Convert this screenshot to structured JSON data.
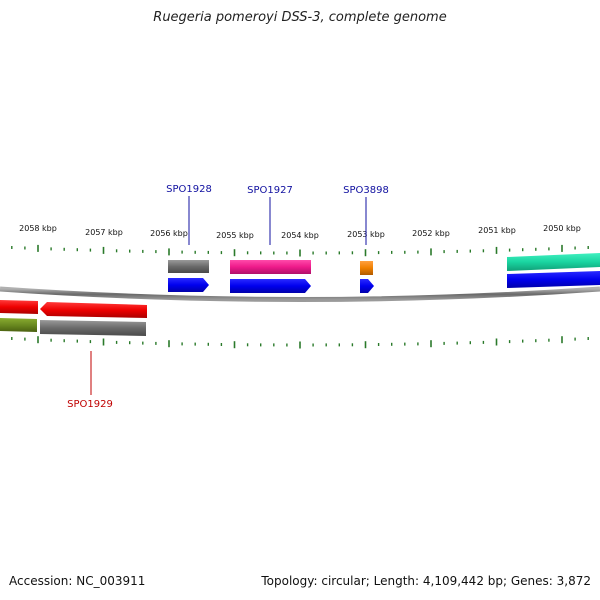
{
  "title": "Ruegeria pomeroyi DSS-3, complete genome",
  "footer": {
    "accession": "Accession: NC_003911",
    "summary": "Topology: circular; Length: 4,109,442 bp; Genes: 3,872"
  },
  "ruler_labels": [
    "2058 kbp",
    "2057 kbp",
    "2056 kbp",
    "2055 kbp",
    "2054 kbp",
    "2053 kbp",
    "2052 kbp",
    "2051 kbp",
    "2050 kbp"
  ],
  "gene_labels": [
    {
      "text": "SPO1928",
      "color": "#1010a0"
    },
    {
      "text": "SPO1927",
      "color": "#1010a0"
    },
    {
      "text": "SPO3898",
      "color": "#1010a0"
    },
    {
      "text": "SPO1929",
      "color": "#c00000"
    }
  ],
  "colors": {
    "tick": "#2a7a2a",
    "backbone": "#7a7a7a",
    "forward_cds": "#0000ee",
    "reverse_cds": "#ee0000",
    "grey_feature": "#707070",
    "pink_feature": "#ee1a8a",
    "orange_feature": "#f08000",
    "teal_feature": "#1ad4a0",
    "olive_feature": "#6a8a20"
  }
}
